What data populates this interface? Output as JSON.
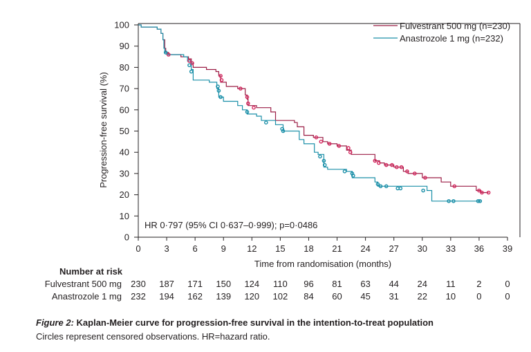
{
  "chart_data": {
    "type": "line",
    "subtype": "kaplan-meier",
    "xlabel": "Time from randomisation (months)",
    "ylabel": "Progression-free survival (%)",
    "xlim": [
      0,
      39
    ],
    "ylim": [
      0,
      100
    ],
    "x_ticks": [
      0,
      3,
      6,
      9,
      12,
      15,
      18,
      21,
      24,
      27,
      30,
      33,
      36,
      39
    ],
    "y_ticks": [
      0,
      10,
      20,
      30,
      40,
      50,
      60,
      70,
      80,
      90,
      100
    ],
    "annotation": "HR 0·797 (95% CI 0·637–0·999); p=0·0486",
    "legend_position": "top-right",
    "series": [
      {
        "name": "Fulvestrant 500 mg (n=230)",
        "color": "#9b1d45",
        "censor_color": "#d6265e",
        "steps": [
          [
            0,
            100
          ],
          [
            0.3,
            99
          ],
          [
            2,
            98
          ],
          [
            2.4,
            96
          ],
          [
            2.6,
            93
          ],
          [
            2.8,
            89
          ],
          [
            2.9,
            87
          ],
          [
            3.2,
            86
          ],
          [
            4.5,
            85
          ],
          [
            5.3,
            84
          ],
          [
            5.6,
            82
          ],
          [
            5.8,
            80
          ],
          [
            7.2,
            79
          ],
          [
            8.2,
            78
          ],
          [
            8.5,
            76
          ],
          [
            8.7,
            73
          ],
          [
            9.3,
            71
          ],
          [
            10.5,
            70
          ],
          [
            11.3,
            67
          ],
          [
            11.5,
            65
          ],
          [
            11.6,
            62
          ],
          [
            12.5,
            61
          ],
          [
            14,
            59
          ],
          [
            14.5,
            55
          ],
          [
            16.5,
            54
          ],
          [
            16.8,
            52
          ],
          [
            17.5,
            48
          ],
          [
            18.5,
            47
          ],
          [
            19.5,
            45
          ],
          [
            20,
            44
          ],
          [
            21,
            43
          ],
          [
            22,
            41
          ],
          [
            22.5,
            39
          ],
          [
            25,
            36
          ],
          [
            25.5,
            35
          ],
          [
            26,
            34
          ],
          [
            27,
            33
          ],
          [
            28,
            31
          ],
          [
            28.5,
            30
          ],
          [
            30,
            28
          ],
          [
            31,
            28
          ],
          [
            32,
            26
          ],
          [
            33,
            24
          ],
          [
            35,
            24
          ],
          [
            35.7,
            22
          ],
          [
            36.2,
            21
          ],
          [
            37,
            21
          ]
        ],
        "censored": [
          [
            3.2,
            86
          ],
          [
            5.4,
            83
          ],
          [
            5.7,
            82
          ],
          [
            8.7,
            76
          ],
          [
            8.8,
            74
          ],
          [
            10.8,
            70
          ],
          [
            11.5,
            66
          ],
          [
            11.6,
            63
          ],
          [
            12.2,
            61
          ],
          [
            18.8,
            47
          ],
          [
            19.3,
            45
          ],
          [
            20.2,
            44
          ],
          [
            21.2,
            43
          ],
          [
            22.2,
            42
          ],
          [
            22.4,
            40
          ],
          [
            25,
            36
          ],
          [
            25.4,
            35
          ],
          [
            26.2,
            34
          ],
          [
            26.8,
            34
          ],
          [
            27.3,
            33
          ],
          [
            27.8,
            33
          ],
          [
            28.4,
            31
          ],
          [
            29.2,
            30
          ],
          [
            30.3,
            28
          ],
          [
            33.4,
            24
          ],
          [
            36,
            22
          ],
          [
            36.3,
            21
          ],
          [
            37,
            21
          ]
        ]
      },
      {
        "name": "Anastrozole 1 mg (n=232)",
        "color": "#1a8fa8",
        "censor_color": "#1a8fa8",
        "steps": [
          [
            0,
            100
          ],
          [
            0.3,
            99
          ],
          [
            2,
            98
          ],
          [
            2.4,
            96
          ],
          [
            2.6,
            93
          ],
          [
            2.7,
            89
          ],
          [
            2.8,
            87
          ],
          [
            3,
            86
          ],
          [
            4.8,
            85
          ],
          [
            5.2,
            83
          ],
          [
            5.6,
            79
          ],
          [
            5.8,
            74
          ],
          [
            7.5,
            73
          ],
          [
            8.3,
            70
          ],
          [
            8.5,
            66
          ],
          [
            9,
            64
          ],
          [
            10.5,
            62
          ],
          [
            11,
            60
          ],
          [
            11.5,
            58
          ],
          [
            12.5,
            57
          ],
          [
            13,
            55
          ],
          [
            14.5,
            53
          ],
          [
            15.3,
            50
          ],
          [
            17,
            46
          ],
          [
            17.5,
            44
          ],
          [
            18.6,
            40
          ],
          [
            19,
            39
          ],
          [
            19.6,
            33
          ],
          [
            20,
            32
          ],
          [
            22,
            31
          ],
          [
            22.6,
            28
          ],
          [
            25,
            26
          ],
          [
            25.3,
            24
          ],
          [
            27,
            24
          ],
          [
            30.5,
            22
          ],
          [
            31,
            17
          ],
          [
            35,
            17
          ],
          [
            36.2,
            17
          ]
        ],
        "censored": [
          [
            2.9,
            87
          ],
          [
            5.4,
            81
          ],
          [
            5.6,
            78
          ],
          [
            8.4,
            71
          ],
          [
            8.5,
            69
          ],
          [
            8.7,
            66
          ],
          [
            11.5,
            59
          ],
          [
            13.5,
            54
          ],
          [
            15.2,
            51
          ],
          [
            15.3,
            50
          ],
          [
            19.2,
            38
          ],
          [
            19.6,
            36
          ],
          [
            19.7,
            34
          ],
          [
            21.8,
            31
          ],
          [
            22.6,
            30
          ],
          [
            22.7,
            29
          ],
          [
            25.3,
            25
          ],
          [
            25.6,
            24
          ],
          [
            26.2,
            24
          ],
          [
            27.4,
            23
          ],
          [
            27.7,
            23
          ],
          [
            30.1,
            22
          ],
          [
            32.8,
            17
          ],
          [
            33.3,
            17
          ],
          [
            35.9,
            17
          ],
          [
            36.1,
            17
          ]
        ]
      }
    ]
  },
  "risk_table": {
    "heading": "Number at risk",
    "rows": [
      {
        "label": "Fulvestrant 500 mg",
        "values": [
          "230",
          "187",
          "171",
          "150",
          "124",
          "110",
          "96",
          "81",
          "63",
          "44",
          "24",
          "11",
          "2",
          "0"
        ]
      },
      {
        "label": "Anastrozole 1 mg",
        "values": [
          "232",
          "194",
          "162",
          "139",
          "120",
          "102",
          "84",
          "60",
          "45",
          "31",
          "22",
          "10",
          "0",
          "0"
        ]
      }
    ]
  },
  "caption": {
    "figure_label": "Figure 2:",
    "title": "Kaplan-Meier curve for progression-free survival in the intention-to-treat population",
    "note": "Circles represent censored observations. HR=hazard ratio."
  }
}
